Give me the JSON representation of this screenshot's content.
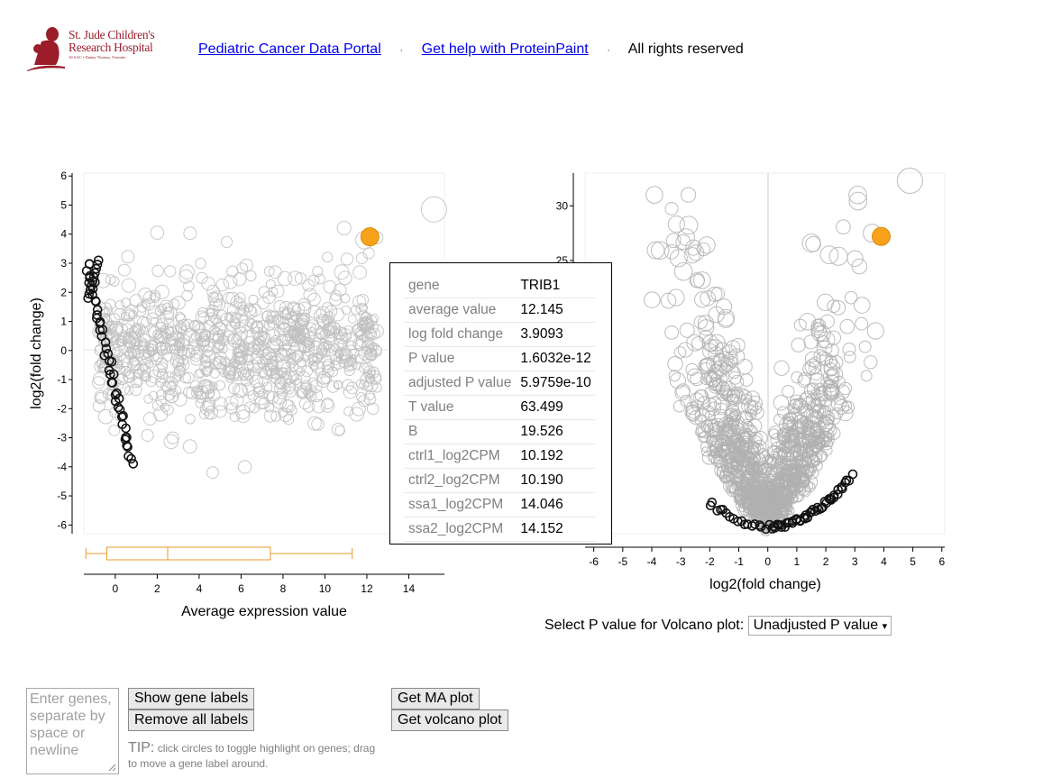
{
  "header": {
    "logo_line1": "St. Jude Children's",
    "logo_line2": "Research Hospital",
    "logo_line3": "ALSAC • Danny Thomas, Founder",
    "link1": "Pediatric Cancer Data Portal",
    "link2": "Get help with ProteinPaint",
    "rights": "All rights reserved",
    "separator": "·"
  },
  "chart_data": [
    {
      "type": "scatter",
      "title": "",
      "xlabel": "Average expression value",
      "ylabel": "log2(fold change)",
      "xlim": [
        -1.5,
        15.7
      ],
      "ylim": [
        -6.3,
        6.1
      ],
      "xticks": [
        0,
        2,
        4,
        6,
        8,
        10,
        12,
        14
      ],
      "yticks": [
        6,
        5,
        4,
        3,
        2,
        1,
        0,
        -1,
        -2,
        -3,
        -4,
        -5,
        -6
      ],
      "highlight": {
        "gene": "TRIB1",
        "x": 12.145,
        "y": 3.9093,
        "color": "#f7a21b"
      },
      "boxplot": {
        "min": -1.4,
        "q1": -0.4,
        "median": 2.5,
        "q3": 7.4,
        "max": 11.3,
        "color": "#e89a2c"
      },
      "point_color": "#c0c0c0"
    },
    {
      "type": "scatter",
      "title": "",
      "xlabel": "log2(fold change)",
      "ylabel": "",
      "xlim": [
        -6.3,
        6.1
      ],
      "ylim": [
        0,
        33
      ],
      "xticks": [
        -6,
        -5,
        -4,
        -3,
        -2,
        -1,
        0,
        1,
        2,
        3,
        4,
        5,
        6
      ],
      "yticks": [
        30,
        25
      ],
      "highlight": {
        "gene": "TRIB1",
        "x": 3.9093,
        "y": 27.2,
        "color": "#f7a21b"
      },
      "point_color": "#b0b0b0"
    }
  ],
  "tooltip": {
    "rows": [
      {
        "key": "gene",
        "value": "TRIB1"
      },
      {
        "key": "average value",
        "value": "12.145"
      },
      {
        "key": "log fold change",
        "value": "3.9093"
      },
      {
        "key": "P value",
        "value": "1.6032e-12"
      },
      {
        "key": "adjusted P value",
        "value": "5.9759e-10"
      },
      {
        "key": "T value",
        "value": "63.499"
      },
      {
        "key": "B",
        "value": "19.526"
      },
      {
        "key": "ctrl1_log2CPM",
        "value": "10.192"
      },
      {
        "key": "ctrl2_log2CPM",
        "value": "10.190"
      },
      {
        "key": "ssa1_log2CPM",
        "value": "14.046"
      },
      {
        "key": "ssa2_log2CPM",
        "value": "14.152"
      }
    ]
  },
  "volcano_select": {
    "label": "Select P value for Volcano plot:",
    "selected": "Unadjusted P value",
    "arrow": "▾"
  },
  "controls": {
    "genes_placeholder": "Enter genes,\nseparate by\nspace or\nnewline",
    "show_labels": "Show gene labels",
    "remove_labels": "Remove all labels",
    "get_ma": "Get MA plot",
    "get_volcano": "Get volcano plot",
    "tip_head": "TIP:",
    "tip_text": "click circles to toggle highlight on genes; drag to move a gene label around."
  }
}
